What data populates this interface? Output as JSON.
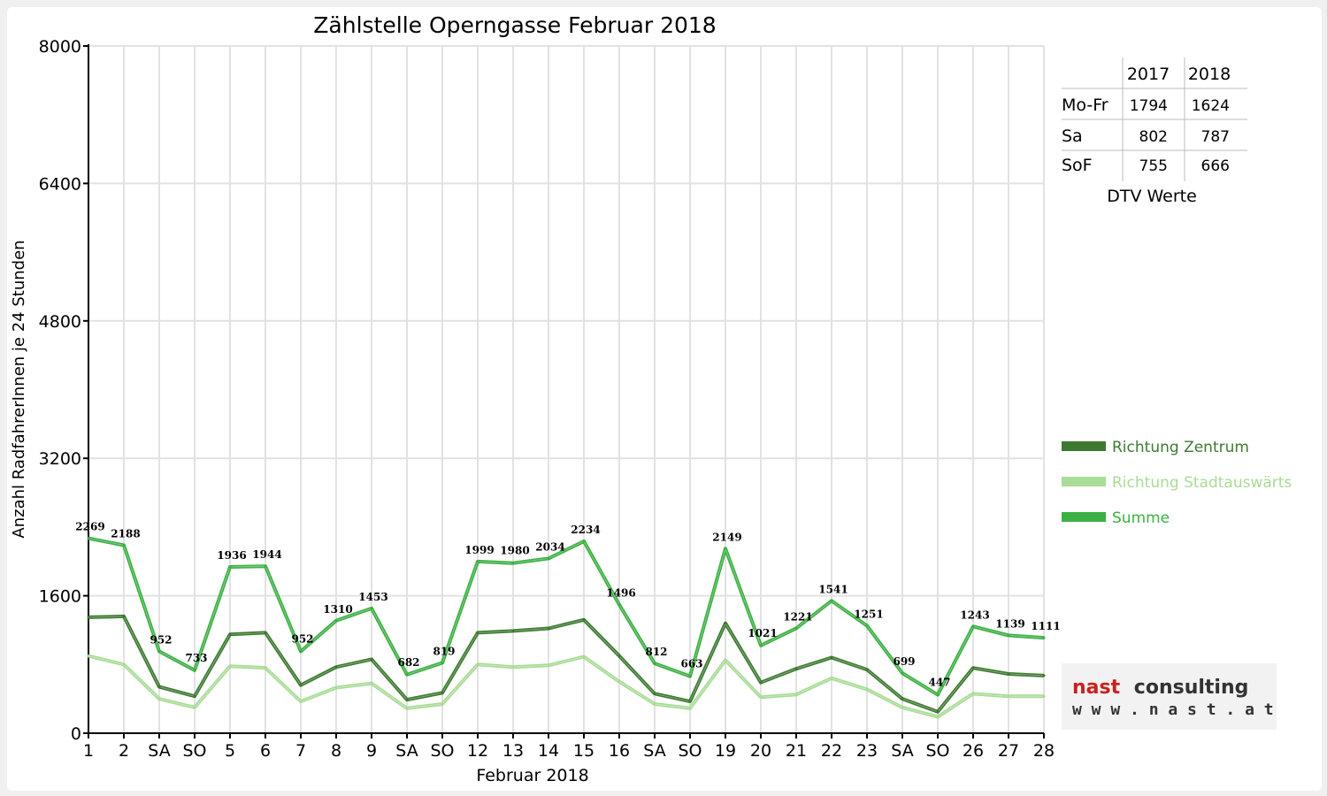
{
  "chart_data": {
    "type": "line",
    "title": "Zählstelle Operngasse Februar 2018",
    "xlabel": "Februar 2018",
    "ylabel": "Anzahl RadfahrerInnen je 24 Stunden",
    "ylim": [
      0,
      8000
    ],
    "yticks": [
      "0",
      "1600",
      "3200",
      "4800",
      "6400",
      "8000"
    ],
    "grid": true,
    "categories": [
      "1",
      "2",
      "SA",
      "SO",
      "5",
      "6",
      "7",
      "8",
      "9",
      "SA",
      "SO",
      "12",
      "13",
      "14",
      "15",
      "16",
      "SA",
      "SO",
      "19",
      "20",
      "21",
      "22",
      "23",
      "SA",
      "SO",
      "26",
      "27",
      "28"
    ],
    "weekend_color": "#ff0000",
    "series": [
      {
        "name": "Richtung Zentrum",
        "color": "#3d7a31",
        "values": [
          1350,
          1360,
          540,
          430,
          1150,
          1170,
          560,
          770,
          860,
          390,
          470,
          1170,
          1190,
          1220,
          1320,
          900,
          460,
          370,
          1280,
          590,
          750,
          880,
          740,
          400,
          250,
          760,
          690,
          670
        ]
      },
      {
        "name": "Richtung Stadtauswärts",
        "color": "#a9dc96",
        "values": [
          900,
          800,
          400,
          300,
          780,
          760,
          370,
          530,
          580,
          290,
          340,
          800,
          770,
          790,
          890,
          600,
          340,
          290,
          850,
          420,
          450,
          640,
          510,
          300,
          190,
          460,
          430,
          430
        ]
      },
      {
        "name": "Summe",
        "color": "#3cb043",
        "values": [
          2269,
          2188,
          952,
          733,
          1936,
          1944,
          952,
          1310,
          1453,
          682,
          819,
          1999,
          1980,
          2034,
          2234,
          1496,
          812,
          663,
          2149,
          1021,
          1221,
          1541,
          1251,
          699,
          447,
          1243,
          1139,
          1111
        ],
        "labels": [
          "2269",
          "2188",
          "952",
          "733",
          "1936",
          "1944",
          "952",
          "1310",
          "1453",
          "682",
          "819",
          "1999",
          "1980",
          "2034",
          "2234",
          "1496",
          "812",
          "663",
          "2149",
          "1021",
          "1221",
          "1541",
          "1251",
          "699",
          "447",
          "1243",
          "1139",
          "1111"
        ]
      }
    ],
    "legend": "right",
    "dtv_table": {
      "caption": "DTV Werte",
      "headers": [
        "",
        "2017",
        "2018"
      ],
      "rows": [
        {
          "label": "Mo-Fr",
          "v2017": "1794",
          "v2018": "1624"
        },
        {
          "label": "Sa",
          "v2017": "802",
          "v2018": "787"
        },
        {
          "label": "SoF",
          "v2017": "755",
          "v2018": "666"
        }
      ]
    }
  },
  "logo": {
    "word1": "nast",
    "word2": "consulting",
    "url": "w w w . n a s t . a t",
    "color1": "#cc1f1f",
    "color2": "#333333"
  }
}
